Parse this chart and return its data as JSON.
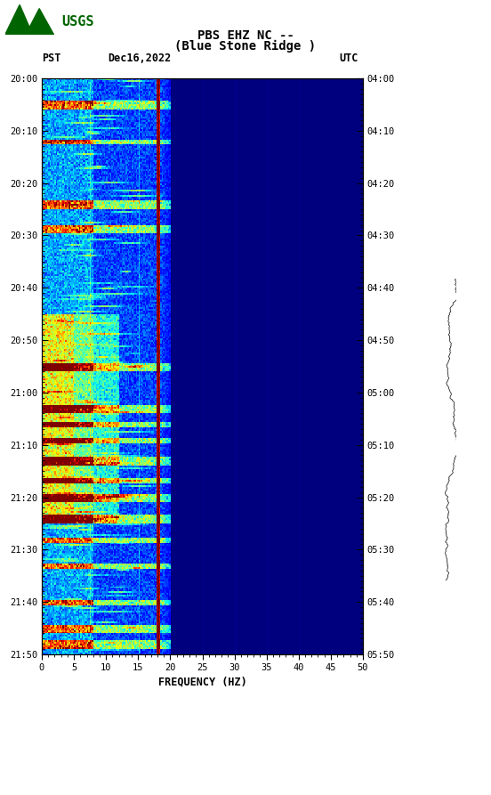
{
  "title_line1": "PBS EHZ NC --",
  "title_line2": "(Blue Stone Ridge )",
  "left_label": "PST",
  "date_label": "Dec16,2022",
  "right_label": "UTC",
  "pst_times": [
    "20:00",
    "20:10",
    "20:20",
    "20:30",
    "20:40",
    "20:50",
    "21:00",
    "21:10",
    "21:20",
    "21:30",
    "21:40",
    "21:50"
  ],
  "utc_times": [
    "04:00",
    "04:10",
    "04:20",
    "04:30",
    "04:40",
    "04:50",
    "05:00",
    "05:10",
    "05:20",
    "05:30",
    "05:40",
    "05:50"
  ],
  "freq_min": 0,
  "freq_max": 50,
  "freq_ticks": [
    0,
    5,
    10,
    15,
    20,
    25,
    30,
    35,
    40,
    45,
    50
  ],
  "xlabel": "FREQUENCY (HZ)",
  "red_line_freq": 18.0,
  "golden_lines_freq": [
    7.5,
    15.0,
    25.0,
    30.0,
    35.0,
    40.0
  ],
  "bg_color": "#ffffff",
  "colormap": "jet",
  "noise_seed": 42,
  "usgs_color": "#006400"
}
